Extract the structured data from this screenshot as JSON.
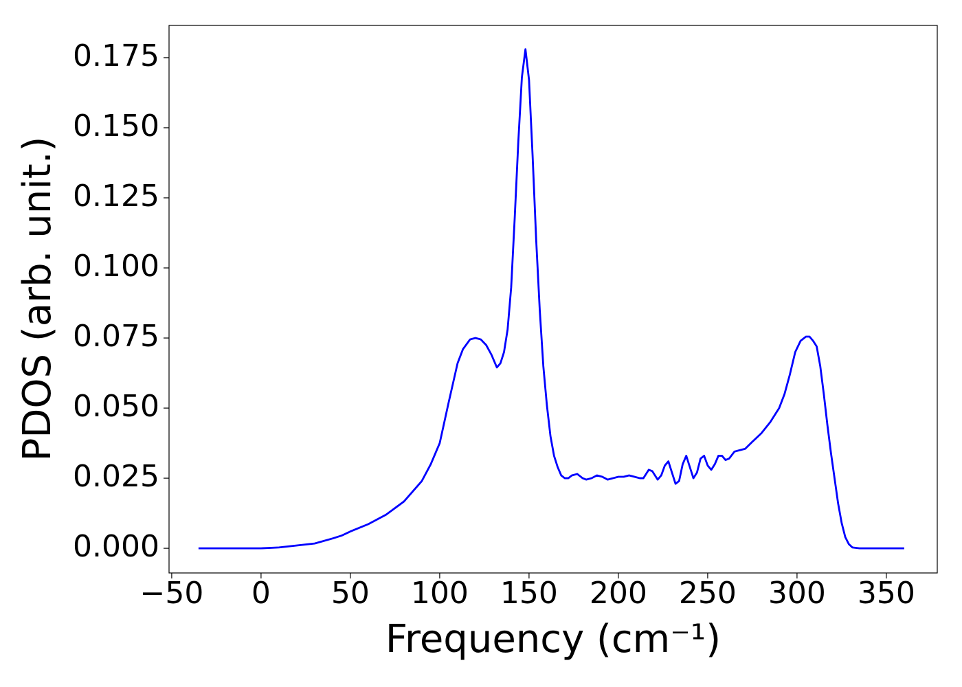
{
  "chart_data": {
    "type": "line",
    "xlabel": "Frequency (cm⁻¹)",
    "ylabel": "PDOS (arb. unit.)",
    "series": [
      {
        "color": "#0000ff",
        "x": [
          -35,
          0,
          10,
          20,
          30,
          40,
          45,
          50,
          60,
          70,
          80,
          90,
          95,
          100,
          105,
          110,
          113,
          117,
          120,
          123,
          126,
          129,
          132,
          134,
          136,
          138,
          140,
          142,
          144,
          146,
          148,
          150,
          152,
          154,
          156,
          158,
          160,
          162,
          164,
          166,
          168,
          170,
          172,
          174,
          177,
          180,
          182,
          185,
          188,
          191,
          194,
          197,
          200,
          203,
          206,
          209,
          212,
          214,
          217,
          219,
          222,
          224,
          226,
          228,
          230,
          232,
          234,
          236,
          238,
          240,
          242,
          244,
          246,
          248,
          250,
          252,
          254,
          256,
          258,
          260,
          262,
          265,
          268,
          271,
          275,
          280,
          285,
          290,
          293,
          296,
          299,
          302,
          305,
          307,
          309,
          311,
          313,
          315,
          317,
          319,
          321,
          323,
          325,
          327,
          329,
          331,
          335,
          360
        ],
        "values": [
          0,
          0,
          0.0003,
          0.001,
          0.0017,
          0.0035,
          0.0045,
          0.006,
          0.0086,
          0.012,
          0.0167,
          0.024,
          0.03,
          0.0375,
          0.052,
          0.066,
          0.071,
          0.0745,
          0.075,
          0.0745,
          0.0725,
          0.069,
          0.0645,
          0.066,
          0.07,
          0.078,
          0.093,
          0.118,
          0.145,
          0.168,
          0.178,
          0.167,
          0.14,
          0.11,
          0.085,
          0.065,
          0.051,
          0.04,
          0.033,
          0.029,
          0.026,
          0.025,
          0.025,
          0.026,
          0.0265,
          0.025,
          0.0245,
          0.025,
          0.026,
          0.0255,
          0.0245,
          0.025,
          0.0255,
          0.0255,
          0.026,
          0.0255,
          0.025,
          0.025,
          0.028,
          0.0275,
          0.0245,
          0.026,
          0.0295,
          0.031,
          0.027,
          0.023,
          0.024,
          0.03,
          0.033,
          0.029,
          0.025,
          0.027,
          0.032,
          0.033,
          0.0295,
          0.028,
          0.03,
          0.033,
          0.033,
          0.0315,
          0.032,
          0.0345,
          0.035,
          0.0355,
          0.038,
          0.041,
          0.045,
          0.05,
          0.055,
          0.062,
          0.07,
          0.074,
          0.0755,
          0.0755,
          0.074,
          0.072,
          0.065,
          0.055,
          0.044,
          0.034,
          0.025,
          0.016,
          0.009,
          0.004,
          0.0015,
          0.0003,
          0,
          0
        ]
      }
    ],
    "xlim": [
      -51.5,
      378.5
    ],
    "ylim": [
      -0.0088,
      0.1865
    ],
    "xticks": [
      {
        "value": -50,
        "label": "−50"
      },
      0,
      50,
      100,
      150,
      200,
      250,
      300,
      350
    ],
    "yticks": [
      {
        "value": 0,
        "label": "0.000"
      },
      {
        "value": 0.025,
        "label": "0.025"
      },
      {
        "value": 0.05,
        "label": "0.050"
      },
      {
        "value": 0.075,
        "label": "0.075"
      },
      {
        "value": 0.1,
        "label": "0.100"
      },
      {
        "value": 0.125,
        "label": "0.125"
      },
      {
        "value": 0.15,
        "label": "0.150"
      },
      {
        "value": 0.175,
        "label": "0.175"
      }
    ],
    "grid": false
  }
}
